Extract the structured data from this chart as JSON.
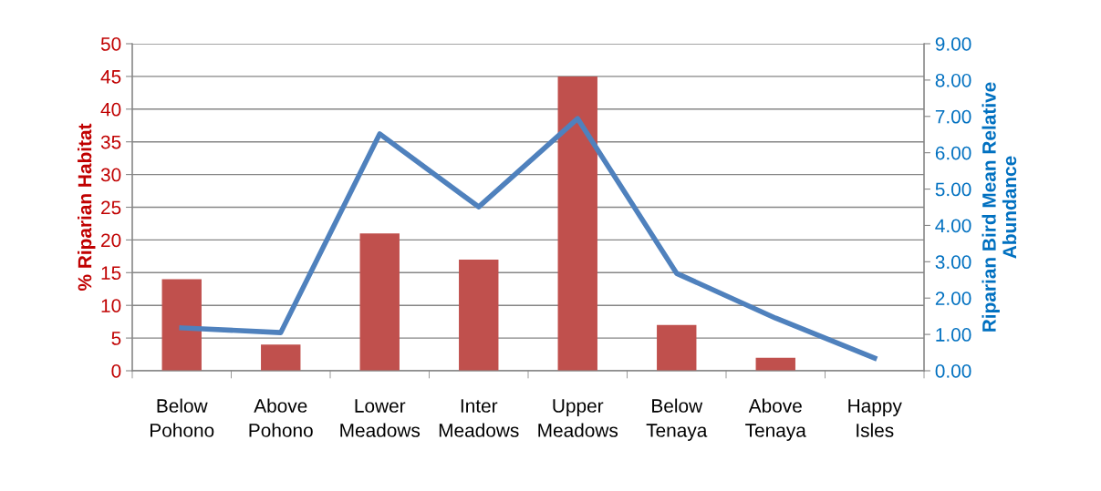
{
  "chart_data": {
    "type": "bar",
    "categories": [
      "Below\nPohono",
      "Above\nPohono",
      "Lower\nMeadows",
      "Inter\nMeadows",
      "Upper\nMeadows",
      "Below\nTenaya",
      "Above\nTenaya",
      "Happy\nIsles"
    ],
    "ylabel": "% Riparian Habitat",
    "y2label": "Riparian Bird Mean Relative\nAbundance",
    "series": [
      {
        "color": "#c0504d",
        "values": [
          14,
          4,
          21,
          17,
          45,
          7,
          2,
          0
        ]
      },
      {
        "type": "line",
        "axis": "y2",
        "color": "#4f81bd",
        "values": [
          1.18,
          1.05,
          6.52,
          4.51,
          6.94,
          2.68,
          1.45,
          0.35
        ]
      }
    ],
    "ylim": [
      0,
      50
    ],
    "yticks": [
      0,
      5,
      10,
      15,
      20,
      25,
      30,
      35,
      40,
      45,
      50
    ],
    "y2lim": [
      0,
      9
    ],
    "y2ticks": [
      {
        "value": 0,
        "label": "0.00"
      },
      {
        "value": 1,
        "label": "1.00"
      },
      {
        "value": 2,
        "label": "2.00"
      },
      {
        "value": 3,
        "label": "3.00"
      },
      {
        "value": 4,
        "label": "4.00"
      },
      {
        "value": 5,
        "label": "5.00"
      },
      {
        "value": 6,
        "label": "6.00"
      },
      {
        "value": 7,
        "label": "7.00"
      },
      {
        "value": 8,
        "label": "8.00"
      },
      {
        "value": 9,
        "label": "9.00"
      }
    ],
    "grid": "y",
    "legend": false,
    "marker": "none",
    "line_style": "solid"
  }
}
